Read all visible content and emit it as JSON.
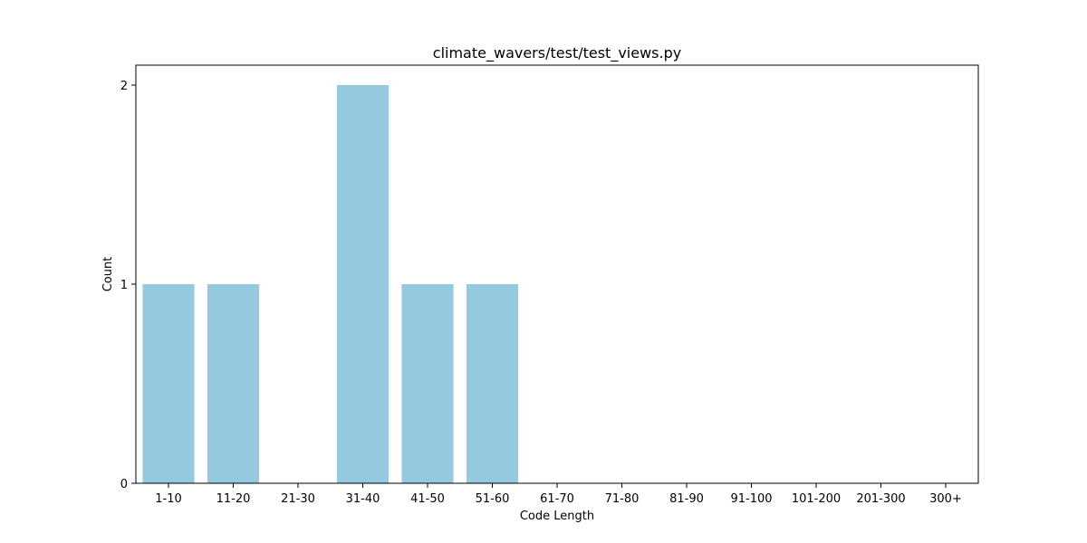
{
  "chart_data": {
    "type": "bar",
    "title": "climate_wavers/test/test_views.py",
    "xlabel": "Code Length",
    "ylabel": "Count",
    "categories": [
      "1-10",
      "11-20",
      "21-30",
      "31-40",
      "41-50",
      "51-60",
      "61-70",
      "71-80",
      "81-90",
      "91-100",
      "101-200",
      "201-300",
      "300+"
    ],
    "values": [
      1,
      1,
      0,
      2,
      1,
      1,
      0,
      0,
      0,
      0,
      0,
      0,
      0
    ],
    "ylim": [
      0,
      2.1
    ],
    "yticks": [
      "0",
      "1",
      "2"
    ],
    "grid": false,
    "bar_color": "#95c9df"
  }
}
